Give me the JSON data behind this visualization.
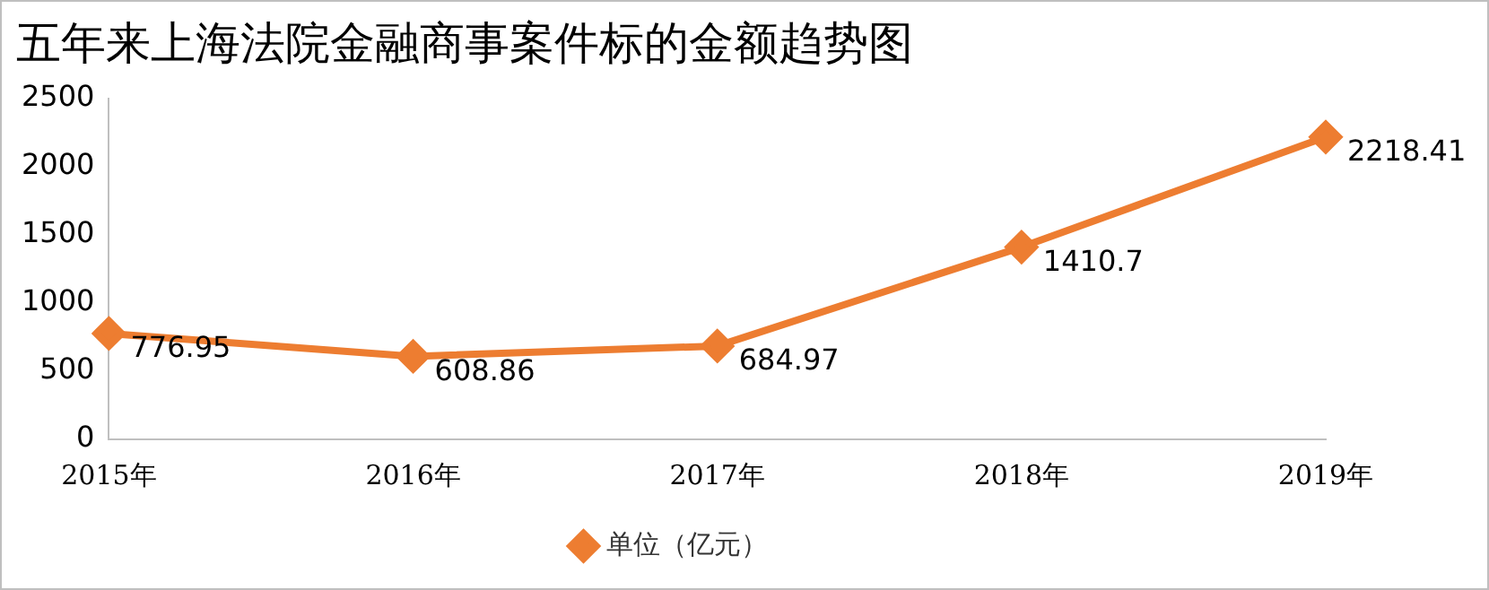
{
  "chart_data": {
    "type": "line",
    "title": "五年来上海法院金融商事案件标的金额趋势图",
    "categories": [
      "2015年",
      "2016年",
      "2017年",
      "2018年",
      "2019年"
    ],
    "series": [
      {
        "name": "单位（亿元）",
        "color": "#ed7d31",
        "values": [
          776.95,
          608.86,
          684.97,
          1410.7,
          2218.41
        ]
      }
    ],
    "ylim": [
      0,
      2500
    ],
    "yticks": [
      0,
      500,
      1000,
      1500,
      2000,
      2500
    ],
    "grid": false,
    "legend": "bottom",
    "marker": "diamond",
    "line_style": "solid",
    "data_labels": true
  }
}
